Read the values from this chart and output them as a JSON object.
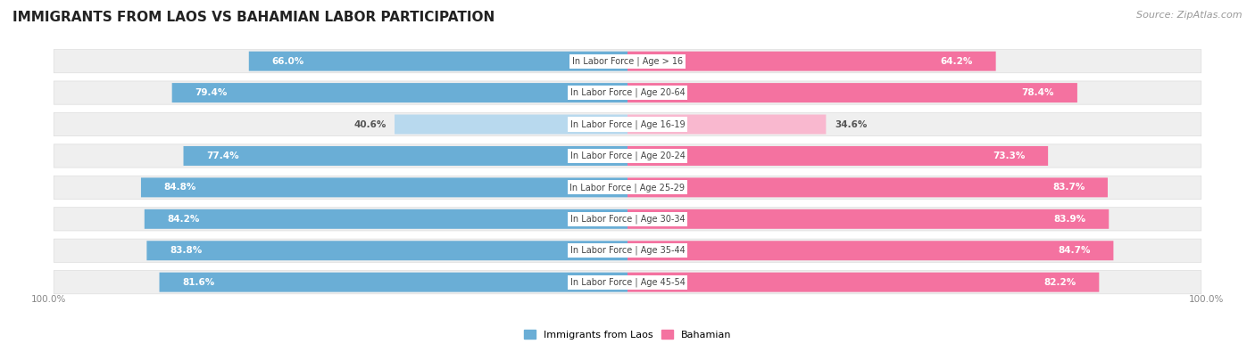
{
  "title": "IMMIGRANTS FROM LAOS VS BAHAMIAN LABOR PARTICIPATION",
  "source": "Source: ZipAtlas.com",
  "categories": [
    "In Labor Force | Age > 16",
    "In Labor Force | Age 20-64",
    "In Labor Force | Age 16-19",
    "In Labor Force | Age 20-24",
    "In Labor Force | Age 25-29",
    "In Labor Force | Age 30-34",
    "In Labor Force | Age 35-44",
    "In Labor Force | Age 45-54"
  ],
  "laos_values": [
    66.0,
    79.4,
    40.6,
    77.4,
    84.8,
    84.2,
    83.8,
    81.6
  ],
  "bahamian_values": [
    64.2,
    78.4,
    34.6,
    73.3,
    83.7,
    83.9,
    84.7,
    82.2
  ],
  "laos_color": "#6aaed6",
  "laos_color_light": "#b8d9ee",
  "bahamian_color": "#f472a0",
  "bahamian_color_light": "#f9b8cf",
  "row_bg_color": "#efefef",
  "max_value": 100.0,
  "legend_laos": "Immigrants from Laos",
  "legend_bahamian": "Bahamian",
  "title_fontsize": 11,
  "source_fontsize": 8,
  "label_fontsize": 7.5,
  "category_fontsize": 7,
  "footer_fontsize": 7.5
}
